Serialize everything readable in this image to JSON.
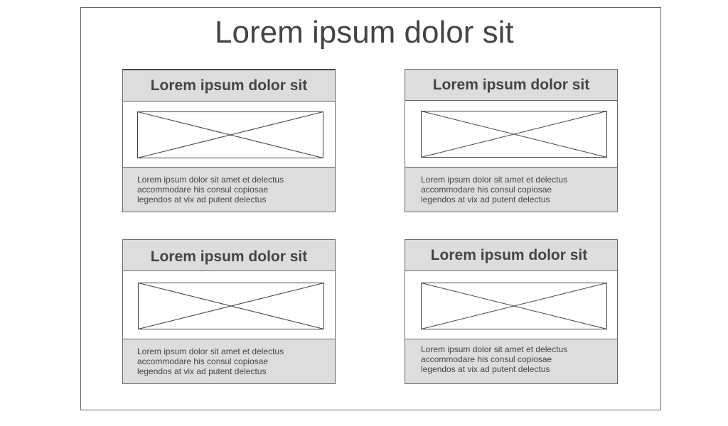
{
  "page": {
    "title": "Lorem ipsum dolor sit"
  },
  "cards": [
    {
      "title": "Lorem ipsum dolor sit",
      "text": "Lorem ipsum dolor sit amet et delectus\naccommodare his consul copiosae\nlegendos at vix ad putent delectus"
    },
    {
      "title": "Lorem ipsum dolor sit",
      "text": "Lorem ipsum dolor sit amet et delectus\naccommodare his consul copiosae\nlegendos at vix ad putent delectus"
    },
    {
      "title": "Lorem ipsum dolor sit",
      "text": "Lorem ipsum dolor sit amet et delectus\naccommodare his consul copiosae\nlegendos at vix ad putent delectus"
    },
    {
      "title": "Lorem ipsum dolor sit",
      "text": "Lorem ipsum dolor sit amet et delectus\naccommodare his consul copiosae\nlegendos at vix ad putent delectus"
    }
  ],
  "colors": {
    "panel_fill": "#dddddd",
    "border": "#666666",
    "text": "#444444"
  },
  "icons": {
    "placeholder": "image-placeholder-icon"
  }
}
